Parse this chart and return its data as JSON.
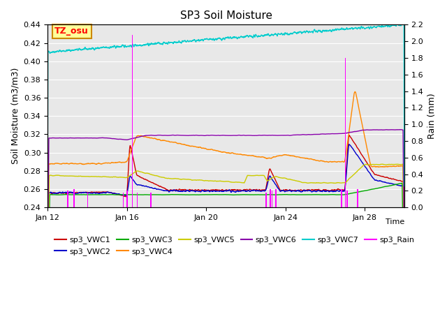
{
  "title": "SP3 Soil Moisture",
  "xlabel": "Time",
  "ylabel_left": "Soil Moisture (m3/m3)",
  "ylabel_right": "Rain (mm)",
  "ylim_left": [
    0.24,
    0.44
  ],
  "ylim_right": [
    0.0,
    2.2
  ],
  "xtick_labels": [
    "Jan 12",
    "Jan 16",
    "Jan 20",
    "Jan 24",
    "Jan 28"
  ],
  "xtick_positions": [
    0,
    4,
    8,
    12,
    16
  ],
  "background_color": "#e8e8e8",
  "fig_background": "#ffffff",
  "annotation_text": "TZ_osu",
  "annotation_bg": "#ffff99",
  "annotation_border": "#cc8800",
  "colors": {
    "VWC1": "#cc0000",
    "VWC2": "#0000cc",
    "VWC3": "#00aa00",
    "VWC4": "#ff8800",
    "VWC5": "#cccc00",
    "VWC6": "#8800aa",
    "VWC7": "#00cccc",
    "Rain": "#ff00ff"
  }
}
